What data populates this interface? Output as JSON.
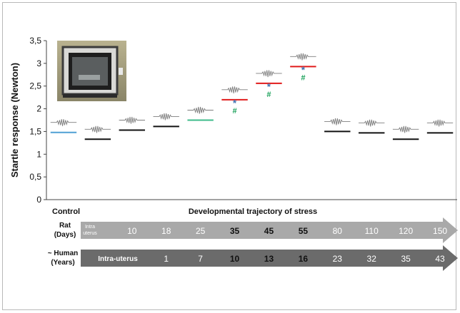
{
  "chart_data": {
    "type": "scatter",
    "ylabel": "Startle response (Newton)",
    "ylim": [
      0,
      3.5
    ],
    "yticks": [
      "0",
      "0,5",
      "1",
      "1,5",
      "2",
      "2,5",
      "3",
      "3,5"
    ],
    "ytick_values": [
      0,
      0.5,
      1,
      1.5,
      2,
      2.5,
      3,
      3.5
    ],
    "grid": false,
    "xlabel_left": "Control",
    "xlabel_main": "Developmental trajectory of stress",
    "categories": [
      "Control",
      "Intra-uterus",
      "10",
      "18",
      "25",
      "35",
      "45",
      "55",
      "80",
      "110",
      "120",
      "150"
    ],
    "values": [
      1.48,
      1.33,
      1.53,
      1.61,
      1.75,
      2.2,
      2.56,
      2.93,
      1.5,
      1.47,
      1.33,
      1.47
    ],
    "bar_colors": [
      "#4f9fd4",
      "#111111",
      "#111111",
      "#111111",
      "#3dbb8a",
      "#e11b1b",
      "#e11b1b",
      "#e11b1b",
      "#111111",
      "#111111",
      "#111111",
      "#111111"
    ],
    "significance": [
      {
        "category": "35",
        "marks": [
          "*",
          "#"
        ]
      },
      {
        "category": "45",
        "marks": [
          "*",
          "#"
        ]
      },
      {
        "category": "55",
        "marks": [
          "*",
          "#"
        ]
      }
    ],
    "marker_colors": {
      "*": "#3a6fb0",
      "#": "#1aa15a"
    }
  },
  "timeline": {
    "rat": {
      "label_line1": "Rat",
      "label_line2": "(Days)",
      "first_line1": "Intra",
      "first_line2": "uterus",
      "values": [
        "10",
        "18",
        "25",
        "35",
        "45",
        "55",
        "80",
        "110",
        "120",
        "150"
      ],
      "bold": [
        false,
        false,
        false,
        true,
        true,
        true,
        false,
        false,
        false,
        false
      ],
      "fill": "#a9a9a9"
    },
    "human": {
      "label_line1": "~ Human",
      "label_line2": "(Years)",
      "first_label": "Intra-uterus",
      "values": [
        "1",
        "7",
        "10",
        "13",
        "16",
        "23",
        "32",
        "35",
        "43"
      ],
      "bold": [
        false,
        false,
        true,
        true,
        true,
        false,
        false,
        false,
        false
      ],
      "fill": "#6b6b6b"
    }
  },
  "inset": {
    "icon": "startle-chamber-photo-icon"
  }
}
